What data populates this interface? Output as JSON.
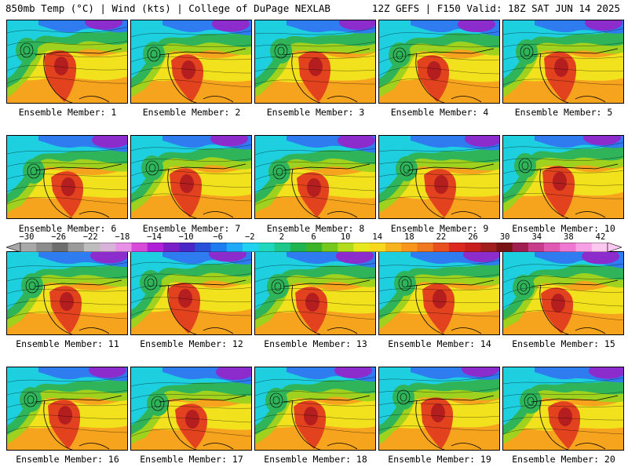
{
  "header": {
    "left": "850mb Temp (°C) | Wind (kts) | College of DuPage NEXLAB",
    "right": "12Z GEFS | F150 Valid: 18Z SAT JUN 14 2025"
  },
  "members": [
    "Ensemble Member: 1",
    "Ensemble Member: 2",
    "Ensemble Member: 3",
    "Ensemble Member: 4",
    "Ensemble Member: 5",
    "Ensemble Member: 6",
    "Ensemble Member: 7",
    "Ensemble Member: 8",
    "Ensemble Member: 9",
    "Ensemble Member: 10",
    "Ensemble Member: 11",
    "Ensemble Member: 12",
    "Ensemble Member: 13",
    "Ensemble Member: 14",
    "Ensemble Member: 15",
    "Ensemble Member: 16",
    "Ensemble Member: 17",
    "Ensemble Member: 18",
    "Ensemble Member: 19",
    "Ensemble Member: 20"
  ],
  "colorbar": {
    "ticks": [
      "−30",
      "−26",
      "−22",
      "−18",
      "−14",
      "−10",
      "−6",
      "−2",
      "2",
      "6",
      "10",
      "14",
      "18",
      "22",
      "26",
      "30",
      "34",
      "38",
      "42"
    ],
    "colors": [
      "#a8a8a8",
      "#8c8c8c",
      "#6e6e6e",
      "#9a9a9a",
      "#bdbdbd",
      "#d8b2d8",
      "#e890e8",
      "#d84ad8",
      "#b020d8",
      "#7a1ec8",
      "#4a28c8",
      "#2850d8",
      "#1e7cf0",
      "#1eaaf8",
      "#20d2f0",
      "#20d8c0",
      "#1ec88c",
      "#1eb450",
      "#3cb428",
      "#74c81e",
      "#b4dc1e",
      "#e8e81e",
      "#f8d81e",
      "#f8b41e",
      "#f8961e",
      "#f0781e",
      "#e8501e",
      "#dc281e",
      "#c81e1e",
      "#a01e1e",
      "#781414",
      "#a01e50",
      "#c83c8c",
      "#e05ab4",
      "#f078d2",
      "#f8a0e6",
      "#fcc8f0"
    ]
  },
  "map_colors": {
    "purple": "#8c2ccc",
    "blue": "#2e7cf0",
    "cyan": "#1ecfe0",
    "green": "#2fb45a",
    "lime": "#9ed21e",
    "yellow": "#f2e21e",
    "orange": "#f6a31e",
    "red": "#e3421e",
    "darkred": "#b41e1e"
  }
}
